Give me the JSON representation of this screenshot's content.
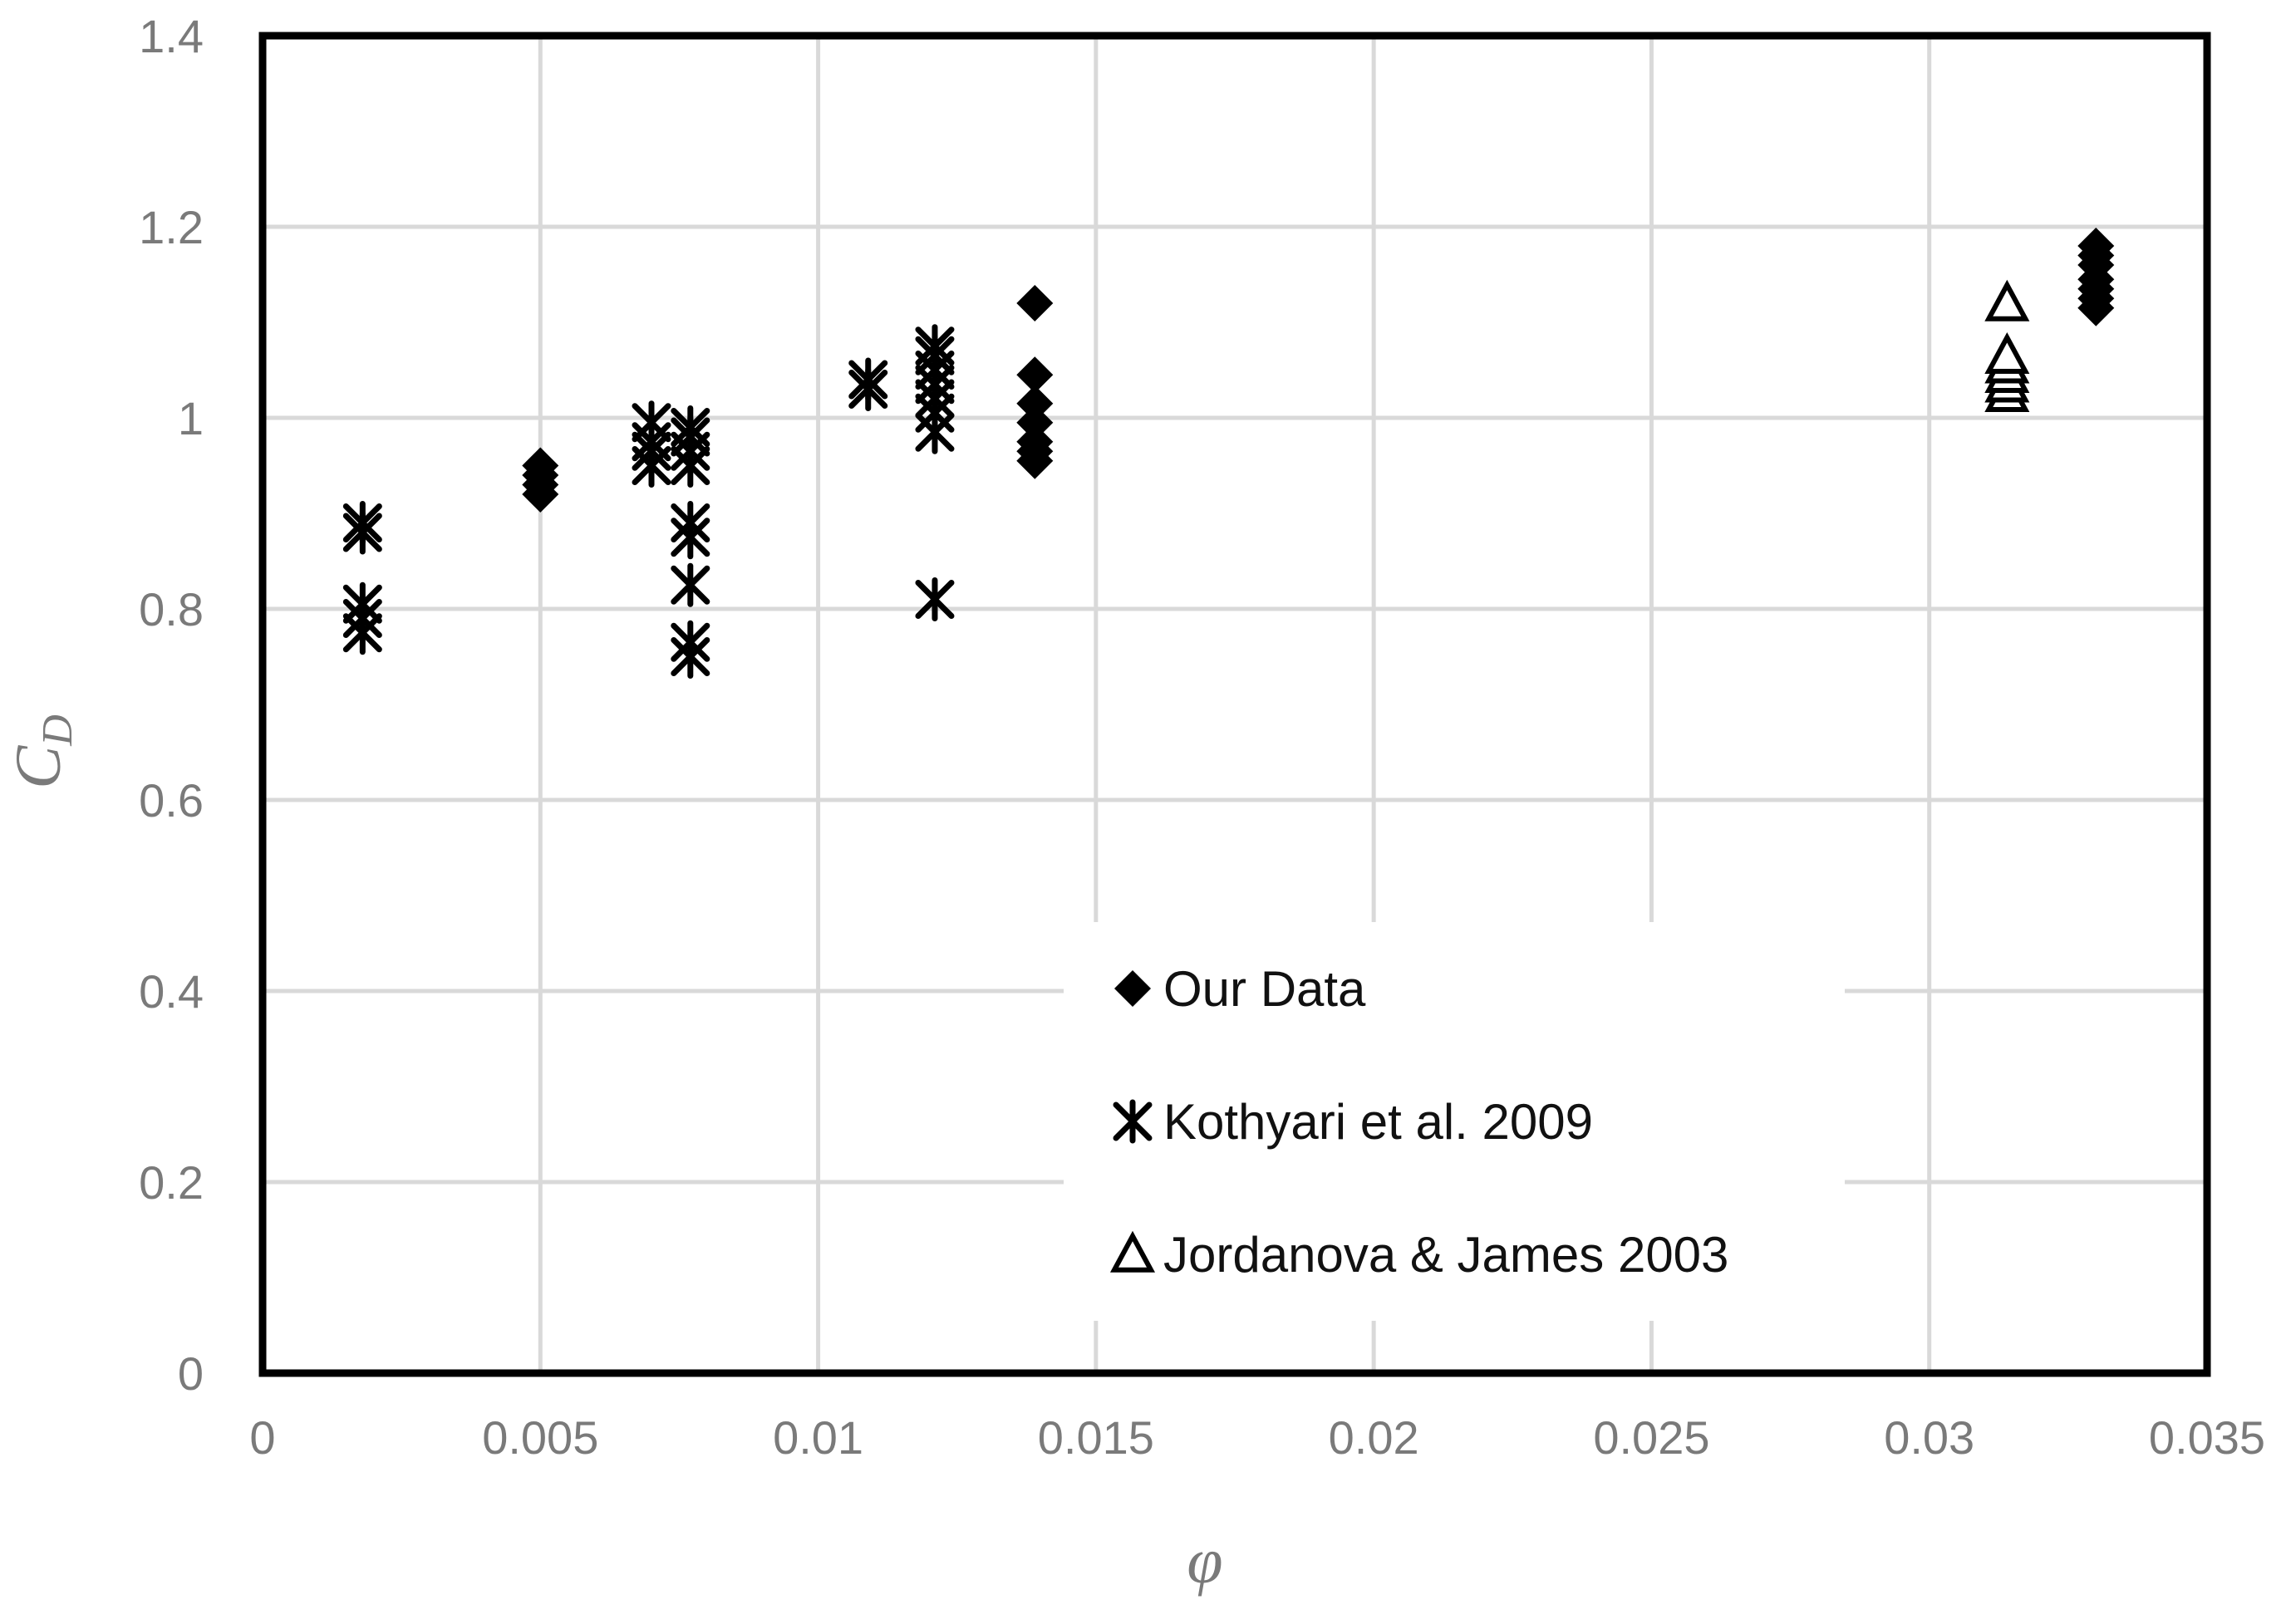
{
  "chart_data": {
    "type": "scatter",
    "xlabel": "φ",
    "ylabel": "C",
    "ylabel_subscript": "D",
    "xlim": [
      0,
      0.035
    ],
    "ylim": [
      0,
      1.4
    ],
    "x_ticks": [
      "0",
      "0.005",
      "0.01",
      "0.015",
      "0.02",
      "0.025",
      "0.03",
      "0.035"
    ],
    "y_ticks": [
      "0",
      "0.2",
      "0.4",
      "0.6",
      "0.8",
      "1",
      "1.2",
      "1.4"
    ],
    "grid": true,
    "legend_position": "lower-center",
    "series": [
      {
        "name": "Our Data",
        "marker": "diamond-filled",
        "color": "#000000",
        "points": [
          [
            0.005,
            0.92
          ],
          [
            0.005,
            0.93
          ],
          [
            0.005,
            0.94
          ],
          [
            0.005,
            0.95
          ],
          [
            0.0139,
            0.955
          ],
          [
            0.0139,
            0.965
          ],
          [
            0.0139,
            0.975
          ],
          [
            0.0139,
            0.995
          ],
          [
            0.0139,
            1.015
          ],
          [
            0.0139,
            1.045
          ],
          [
            0.0139,
            1.12
          ],
          [
            0.033,
            1.115
          ],
          [
            0.033,
            1.125
          ],
          [
            0.033,
            1.135
          ],
          [
            0.033,
            1.145
          ],
          [
            0.033,
            1.16
          ],
          [
            0.033,
            1.17
          ],
          [
            0.033,
            1.18
          ]
        ]
      },
      {
        "name": "Kothyari et al. 2009",
        "marker": "asterisk",
        "color": "#000000",
        "points": [
          [
            0.0018,
            0.775
          ],
          [
            0.0018,
            0.79
          ],
          [
            0.0018,
            0.805
          ],
          [
            0.0018,
            0.88
          ],
          [
            0.0018,
            0.89
          ],
          [
            0.007,
            0.95
          ],
          [
            0.007,
            0.965
          ],
          [
            0.007,
            0.975
          ],
          [
            0.007,
            0.995
          ],
          [
            0.0077,
            0.75
          ],
          [
            0.0077,
            0.765
          ],
          [
            0.0077,
            0.825
          ],
          [
            0.0077,
            0.875
          ],
          [
            0.0077,
            0.89
          ],
          [
            0.0077,
            0.95
          ],
          [
            0.0077,
            0.965
          ],
          [
            0.0077,
            0.98
          ],
          [
            0.0077,
            0.99
          ],
          [
            0.0109,
            1.03
          ],
          [
            0.0109,
            1.04
          ],
          [
            0.0121,
            0.81
          ],
          [
            0.0121,
            0.985
          ],
          [
            0.0121,
            1.005
          ],
          [
            0.0121,
            1.02
          ],
          [
            0.0121,
            1.035
          ],
          [
            0.0121,
            1.05
          ],
          [
            0.0121,
            1.065
          ],
          [
            0.0121,
            1.075
          ]
        ]
      },
      {
        "name": "Jordanova & James 2003",
        "marker": "triangle-open",
        "color": "#000000",
        "points": [
          [
            0.0314,
            1.025
          ],
          [
            0.0314,
            1.035
          ],
          [
            0.0314,
            1.045
          ],
          [
            0.0314,
            1.055
          ],
          [
            0.0314,
            1.065
          ],
          [
            0.0314,
            1.12
          ]
        ]
      }
    ]
  }
}
